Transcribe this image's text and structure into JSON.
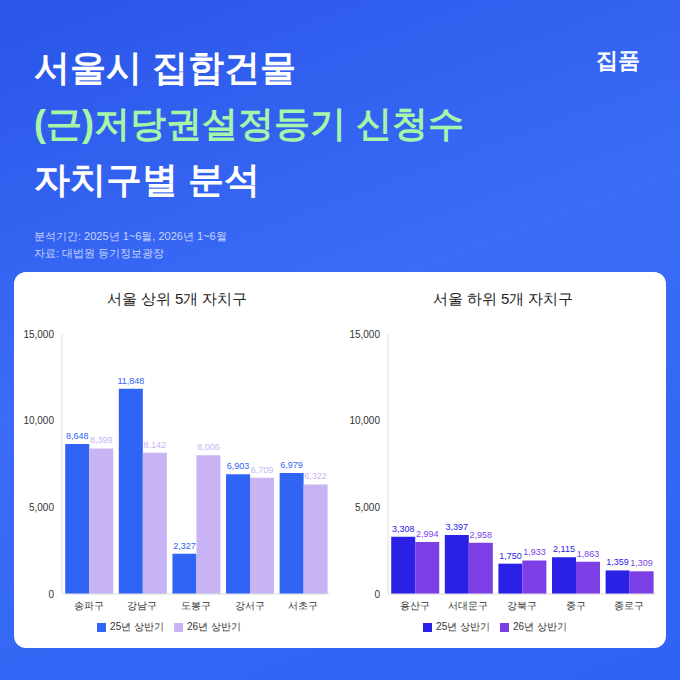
{
  "header": {
    "title": [
      "서울시 집합건물",
      "(근)저당권설정등기 신청수",
      "자치구별 분석"
    ],
    "brand": "집품",
    "notes": [
      "분석기간: 2025년 1~6월, 2026년 1~6월",
      "자료: 대법원 등기정보광장"
    ]
  },
  "chart_data": [
    {
      "type": "bar",
      "title": "서울 상위 5개 자치구",
      "categories": [
        "송파구",
        "강남구",
        "도봉구",
        "강서구",
        "서초구"
      ],
      "series": [
        {
          "name": "25년 상반기",
          "color": "#3064f5",
          "values": [
            8648,
            11848,
            2327,
            6903,
            6979
          ],
          "value_labels": [
            "8,648",
            "11,848",
            "2,327",
            "6,903",
            "6,979"
          ]
        },
        {
          "name": "26년 상반기",
          "color": "#c8b4f4",
          "values": [
            8399,
            8142,
            8006,
            6709,
            6322
          ],
          "value_labels": [
            "8,399",
            "8,142",
            "8,006",
            "6,709",
            "6,322"
          ]
        }
      ],
      "ylim": [
        0,
        15000
      ],
      "yticks": [
        0,
        {
          "value": 5000,
          "label": "5,000"
        },
        {
          "value": 10000,
          "label": "10,000"
        },
        {
          "value": 15000,
          "label": "15,000"
        }
      ],
      "grid": false,
      "legend": "bottom",
      "data_labels": true
    },
    {
      "type": "bar",
      "title": "서울 하위 5개 자치구",
      "categories": [
        "용산구",
        "서대문구",
        "강북구",
        "중구",
        "종로구"
      ],
      "series": [
        {
          "name": "25년 상반기",
          "color": "#2b20e6",
          "values": [
            3308,
            3397,
            1750,
            2115,
            1359
          ],
          "value_labels": [
            "3,308",
            "3,397",
            "1,750",
            "2,115",
            "1,359"
          ]
        },
        {
          "name": "26년 상반기",
          "color": "#7c3fe6",
          "values": [
            2994,
            2958,
            1933,
            1863,
            1309
          ],
          "value_labels": [
            "2,994",
            "2,958",
            "1,933",
            "1,863",
            "1,309"
          ]
        }
      ],
      "ylim": [
        0,
        15000
      ],
      "yticks": [
        0,
        {
          "value": 5000,
          "label": "5,000"
        },
        {
          "value": 10000,
          "label": "10,000"
        },
        {
          "value": 15000,
          "label": "15,000"
        }
      ],
      "grid": false,
      "legend": "bottom",
      "data_labels": true
    }
  ]
}
